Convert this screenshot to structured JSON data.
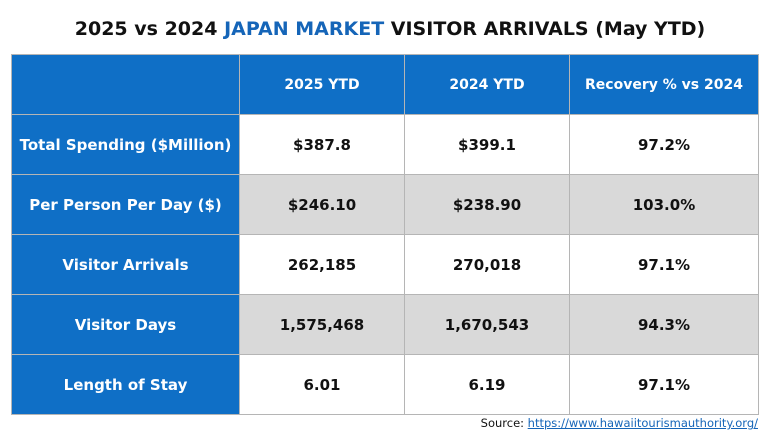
{
  "title": {
    "part1": "2025 vs 2024 ",
    "accent": "JAPAN MARKET",
    "part2": " VISITOR ARRIVALS (May YTD)"
  },
  "colors": {
    "header_blue": "#0f6fc6",
    "title_accent": "#1565b8",
    "row_shade": "#d9d9d9"
  },
  "table": {
    "headers": [
      "",
      "2025 YTD",
      "2024 YTD",
      "Recovery % vs 2024"
    ],
    "rows": [
      {
        "label": "Total Spending ($Million)",
        "y2025": "$387.8",
        "y2024": "$399.1",
        "recovery": "97.2%"
      },
      {
        "label": "Per Person Per Day ($)",
        "y2025": "$246.10",
        "y2024": "$238.90",
        "recovery": "103.0%"
      },
      {
        "label": "Visitor Arrivals",
        "y2025": "262,185",
        "y2024": "270,018",
        "recovery": "97.1%"
      },
      {
        "label": "Visitor Days",
        "y2025": "1,575,468",
        "y2024": "1,670,543",
        "recovery": "94.3%"
      },
      {
        "label": "Length of Stay",
        "y2025": "6.01",
        "y2024": "6.19",
        "recovery": "97.1%"
      }
    ]
  },
  "source": {
    "prefix": "Source: ",
    "link_text": "https://www.hawaiitourismauthority.org/"
  }
}
